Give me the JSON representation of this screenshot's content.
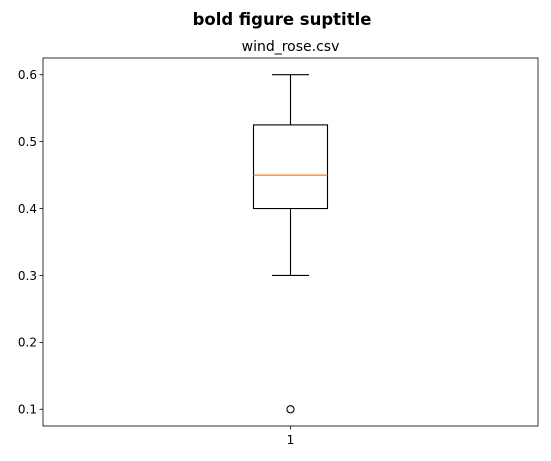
{
  "figure": {
    "suptitle": "bold figure suptitle"
  },
  "chart_data": {
    "type": "boxplot",
    "title": "wind_rose.csv",
    "xlabel": "",
    "ylabel": "",
    "categories": [
      "1"
    ],
    "boxes": [
      {
        "category": "1",
        "whisker_low": 0.3,
        "q1": 0.4,
        "median": 0.45,
        "q3": 0.525,
        "whisker_high": 0.6,
        "outliers": [
          0.1
        ]
      }
    ],
    "ylim": [
      0.075,
      0.625
    ],
    "yticks": [
      0.1,
      0.2,
      0.3,
      0.4,
      0.5,
      0.6
    ],
    "ytick_labels": [
      "0.1",
      "0.2",
      "0.3",
      "0.4",
      "0.5",
      "0.6"
    ],
    "grid": false,
    "colors": {
      "box": "#000000",
      "median": "#ff7f0e",
      "outlier": "#000000"
    }
  }
}
